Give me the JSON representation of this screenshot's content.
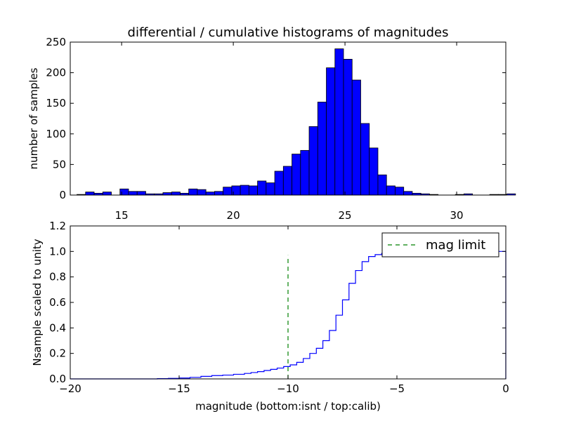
{
  "chart_data": [
    {
      "type": "bar",
      "title": "differential / cumulative histograms of magnitudes",
      "xlabel": "",
      "ylabel": "number of samples",
      "xlim": [
        12.7,
        32.2
      ],
      "ylim": [
        0,
        250
      ],
      "x_ticks": [
        15,
        20,
        25,
        30
      ],
      "y_ticks": [
        0,
        50,
        100,
        150,
        200,
        250
      ],
      "x_tick_position": "top",
      "grid": false,
      "bar_color": "#0000ff",
      "bin_width": 0.385,
      "bin_start": 13.0,
      "series": [
        {
          "values": [
            1,
            5,
            3,
            5,
            0,
            10,
            6,
            6,
            2,
            2,
            4,
            5,
            3,
            10,
            9,
            5,
            6,
            13,
            15,
            16,
            15,
            23,
            20,
            39,
            47,
            67,
            73,
            112,
            152,
            208,
            239,
            222,
            188,
            117,
            77,
            33,
            15,
            13,
            6,
            3,
            2,
            1,
            0,
            0,
            1,
            2,
            0,
            0,
            1,
            1,
            2,
            0,
            0
          ]
        }
      ]
    },
    {
      "type": "line",
      "title": "",
      "xlabel": "magnitude (bottom:isnt / top:calib)",
      "ylabel": "Nsample scaled to unity",
      "xlim": [
        -20,
        0
      ],
      "ylim": [
        0,
        1.2
      ],
      "x_ticks": [
        -20,
        -15,
        -10,
        -5,
        0
      ],
      "y_ticks": [
        0.0,
        0.2,
        0.4,
        0.6,
        0.8,
        1.0,
        1.2
      ],
      "grid": false,
      "legend_position": "top-right",
      "series": [
        {
          "style": "step",
          "color": "#0000ff",
          "x": [
            -20.0,
            -16.0,
            -15.5,
            -15.0,
            -14.5,
            -14.0,
            -13.5,
            -13.0,
            -12.5,
            -12.0,
            -11.7,
            -11.4,
            -11.1,
            -10.8,
            -10.5,
            -10.2,
            -9.9,
            -9.6,
            -9.3,
            -9.0,
            -8.7,
            -8.4,
            -8.1,
            -7.8,
            -7.5,
            -7.2,
            -6.9,
            -6.6,
            -6.3,
            -6.0,
            -5.7,
            -5.4,
            -5.1,
            -4.8,
            -4.5,
            -4.2,
            -3.9,
            0.0
          ],
          "y": [
            0.0,
            0.002,
            0.004,
            0.007,
            0.012,
            0.02,
            0.026,
            0.03,
            0.036,
            0.043,
            0.05,
            0.057,
            0.066,
            0.075,
            0.085,
            0.097,
            0.11,
            0.13,
            0.16,
            0.2,
            0.24,
            0.3,
            0.38,
            0.5,
            0.62,
            0.75,
            0.85,
            0.92,
            0.96,
            0.975,
            0.985,
            0.99,
            0.994,
            0.996,
            0.998,
            0.999,
            1.0,
            1.0
          ]
        },
        {
          "name": "mag limit",
          "style": "dashed",
          "color": "#008000",
          "x": [
            -10.0,
            -10.0
          ],
          "y": [
            0.0,
            0.97
          ]
        }
      ]
    }
  ]
}
